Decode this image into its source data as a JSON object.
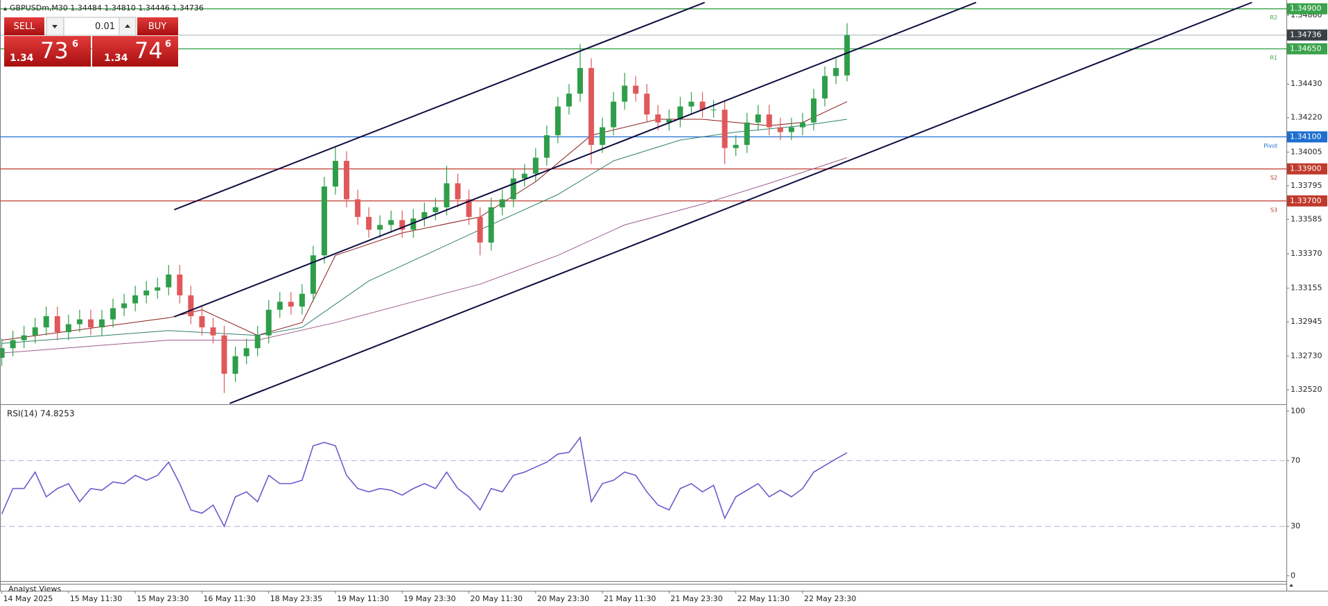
{
  "header": "GBPUSDm,M30  1.34484 1.34810 1.34446 1.34736",
  "trade_panel": {
    "sell": "SELL",
    "lot": "0.01",
    "buy": "BUY",
    "bid": {
      "big": "1.34",
      "main": "73",
      "small": "6"
    },
    "ask": {
      "big": "1.34",
      "main": "74",
      "small": "6"
    }
  },
  "analyst_views": "Analyst Views",
  "chart_data": {
    "type": "candlestick",
    "up_color": "#2f9e4a",
    "down_color": "#e0585a",
    "xlim": [
      -0.16,
      115.5
    ],
    "ylim": [
      1.3243,
      1.34955
    ],
    "xticks": [
      {
        "value": 0,
        "label": "14 May 2025"
      },
      {
        "value": 6,
        "label": "15 May 11:30"
      },
      {
        "value": 12,
        "label": "15 May 23:30"
      },
      {
        "value": 18,
        "label": "16 May 11:30"
      },
      {
        "value": 24,
        "label": "18 May 23:35"
      },
      {
        "value": 30,
        "label": "19 May 11:30"
      },
      {
        "value": 36,
        "label": "19 May 23:30"
      },
      {
        "value": 42,
        "label": "20 May 11:30"
      },
      {
        "value": 48,
        "label": "20 May 23:30"
      },
      {
        "value": 54,
        "label": "21 May 11:30"
      },
      {
        "value": 60,
        "label": "21 May 23:30"
      },
      {
        "value": 66,
        "label": "22 May 11:30"
      },
      {
        "value": 72,
        "label": "22 May 23:30"
      }
    ],
    "yticks": [
      {
        "value": 1.3486,
        "label": "1.34860"
      },
      {
        "value": 1.3443,
        "label": "1.34430"
      },
      {
        "value": 1.3422,
        "label": "1.34220"
      },
      1.34005,
      1.33795,
      1.33585,
      {
        "value": 1.3337,
        "label": "1.33370"
      },
      1.33155,
      1.32945,
      {
        "value": 1.3273,
        "label": "1.32730"
      },
      {
        "value": 1.3252,
        "label": "1.32520"
      }
    ],
    "open": [
      1.3272,
      1.3278,
      1.3283,
      1.3286,
      1.3291,
      1.3298,
      1.3288,
      1.3293,
      1.3296,
      1.3291,
      1.3296,
      1.3303,
      1.3306,
      1.3311,
      1.3314,
      1.3316,
      1.3324,
      1.3311,
      1.3298,
      1.3291,
      1.3286,
      1.3262,
      1.3273,
      1.3278,
      1.3286,
      1.3302,
      1.3307,
      1.3304,
      1.3312,
      1.3336,
      1.3379,
      1.3395,
      1.3371,
      1.336,
      1.3352,
      1.3355,
      1.3358,
      1.3352,
      1.3359,
      1.3363,
      1.3366,
      1.3381,
      1.3371,
      1.336,
      1.3344,
      1.3366,
      1.3371,
      1.3384,
      1.3387,
      1.3397,
      1.3411,
      1.3429,
      1.3437,
      1.3453,
      1.3405,
      1.3416,
      1.3432,
      1.3442,
      1.3437,
      1.3424,
      1.3419,
      1.3421,
      1.3429,
      1.3432,
      1.3427,
      1.3427,
      1.3403,
      1.3405,
      1.3419,
      1.3424,
      1.3416,
      1.3413,
      1.3416,
      1.3419,
      1.3434,
      1.3448,
      1.34484
    ],
    "high": [
      1.3284,
      1.3289,
      1.3292,
      1.3297,
      1.3304,
      1.3304,
      1.3299,
      1.3302,
      1.3302,
      1.3302,
      1.3309,
      1.3312,
      1.3317,
      1.332,
      1.3322,
      1.333,
      1.333,
      1.3317,
      1.3304,
      1.3297,
      1.3292,
      1.3279,
      1.3284,
      1.3292,
      1.3308,
      1.3313,
      1.3313,
      1.3318,
      1.3342,
      1.3385,
      1.3404,
      1.3401,
      1.3377,
      1.3366,
      1.3361,
      1.3364,
      1.3364,
      1.3365,
      1.3369,
      1.3372,
      1.3392,
      1.3387,
      1.3377,
      1.3366,
      1.3372,
      1.3377,
      1.339,
      1.3393,
      1.3403,
      1.3417,
      1.3435,
      1.3443,
      1.3468,
      1.3459,
      1.3422,
      1.3438,
      1.345,
      1.3448,
      1.3443,
      1.343,
      1.3427,
      1.3435,
      1.3438,
      1.3438,
      1.3433,
      1.3433,
      1.3411,
      1.3425,
      1.343,
      1.343,
      1.3422,
      1.3422,
      1.3425,
      1.344,
      1.3454,
      1.3459,
      1.3481
    ],
    "low": [
      1.3267,
      1.3273,
      1.3278,
      1.3281,
      1.3286,
      1.3283,
      1.3283,
      1.3288,
      1.3286,
      1.3286,
      1.3291,
      1.3298,
      1.3301,
      1.3306,
      1.3309,
      1.3311,
      1.3306,
      1.3293,
      1.3286,
      1.3281,
      1.325,
      1.3257,
      1.3268,
      1.3273,
      1.3281,
      1.3297,
      1.3299,
      1.3299,
      1.3307,
      1.3331,
      1.3374,
      1.3366,
      1.3355,
      1.3347,
      1.3347,
      1.335,
      1.3347,
      1.3347,
      1.3354,
      1.3358,
      1.3361,
      1.3366,
      1.3355,
      1.3336,
      1.3339,
      1.3361,
      1.3366,
      1.3379,
      1.3382,
      1.3392,
      1.3406,
      1.3424,
      1.3432,
      1.3393,
      1.34,
      1.3411,
      1.3427,
      1.3432,
      1.3419,
      1.3414,
      1.3414,
      1.3416,
      1.3424,
      1.3422,
      1.3422,
      1.3393,
      1.3398,
      1.34,
      1.3414,
      1.3411,
      1.3408,
      1.3408,
      1.3411,
      1.3414,
      1.3429,
      1.3443,
      1.34446
    ],
    "close": [
      1.3278,
      1.3283,
      1.3286,
      1.3291,
      1.3298,
      1.3288,
      1.3293,
      1.3296,
      1.3291,
      1.3296,
      1.3303,
      1.3306,
      1.3311,
      1.3314,
      1.3316,
      1.3324,
      1.3311,
      1.3298,
      1.3291,
      1.3286,
      1.3262,
      1.3273,
      1.3278,
      1.3286,
      1.3302,
      1.3307,
      1.3304,
      1.3312,
      1.3336,
      1.3379,
      1.3395,
      1.3371,
      1.336,
      1.3352,
      1.3355,
      1.3358,
      1.3352,
      1.3359,
      1.3363,
      1.3366,
      1.3381,
      1.3371,
      1.336,
      1.3344,
      1.3366,
      1.3371,
      1.3384,
      1.3387,
      1.3397,
      1.3411,
      1.3429,
      1.3437,
      1.3453,
      1.3405,
      1.3416,
      1.3432,
      1.3442,
      1.3437,
      1.3424,
      1.3419,
      1.3421,
      1.3429,
      1.3432,
      1.3427,
      1.3427,
      1.3403,
      1.3405,
      1.3419,
      1.3424,
      1.3416,
      1.3413,
      1.3416,
      1.3419,
      1.3434,
      1.3448,
      1.3453,
      1.34736
    ],
    "moving_averages": [
      {
        "color": "#8b1a1a",
        "x": [
          0,
          15,
          18,
          23,
          27,
          30,
          36,
          43,
          48,
          53,
          59,
          63,
          69,
          72,
          76
        ],
        "values": [
          1.3283,
          1.3297,
          1.3302,
          1.3286,
          1.3294,
          1.3336,
          1.335,
          1.336,
          1.3382,
          1.3411,
          1.3421,
          1.3421,
          1.3417,
          1.3419,
          1.3432
        ]
      },
      {
        "color": "#2f7f6f",
        "x": [
          0,
          15,
          23,
          27,
          33,
          38,
          43,
          50,
          55,
          61,
          66,
          72,
          76
        ],
        "values": [
          1.3281,
          1.3289,
          1.3286,
          1.3291,
          1.332,
          1.3336,
          1.3352,
          1.3374,
          1.3395,
          1.3408,
          1.3413,
          1.3417,
          1.3421
        ]
      },
      {
        "color": "#9c5b8e",
        "x": [
          0,
          15,
          23,
          30,
          37,
          43,
          50,
          56,
          63,
          69,
          76
        ],
        "values": [
          1.3275,
          1.3283,
          1.3283,
          1.3294,
          1.3307,
          1.3318,
          1.3336,
          1.3355,
          1.3368,
          1.3381,
          1.3397
        ]
      }
    ],
    "trendline_color": "#0c0c40",
    "trendlines": [
      {
        "x": [
          15.5,
          63.2
        ],
        "y": [
          1.33645,
          1.3494
        ]
      },
      {
        "x": [
          15.5,
          87.6
        ],
        "y": [
          1.32976,
          1.3494
        ]
      },
      {
        "x": [
          20.5,
          112.4
        ],
        "y": [
          1.32435,
          1.3494
        ]
      }
    ],
    "levels": [
      {
        "name": "R2",
        "value": 1.349,
        "label": "1.34900",
        "color": "#3aa24a"
      },
      {
        "name": "R1",
        "value": 1.3465,
        "label": "1.34650",
        "color": "#3aa24a"
      },
      {
        "name": "Pivot",
        "value": 1.341,
        "label": "1.34100",
        "color": "#1e6fd0"
      },
      {
        "name": "S2",
        "value": 1.339,
        "label": "1.33900",
        "color": "#c0392b"
      },
      {
        "name": "S3",
        "value": 1.337,
        "label": "1.33700",
        "color": "#c0392b"
      }
    ],
    "current_price": 1.34736,
    "current_price_color": "#3a3f44",
    "rsi": {
      "label": "RSI(14) 74.8253",
      "color": "#6a5acd",
      "level_color": "#b9a9dc",
      "ylim": [
        -3.6,
        103.8
      ],
      "yticks": [
        100,
        70,
        30,
        0
      ],
      "levels": [
        70,
        30
      ],
      "values": [
        37.6,
        53,
        53,
        63,
        48,
        53,
        56,
        45,
        53,
        52,
        57,
        56,
        61,
        58,
        61,
        69,
        56,
        40,
        38,
        43,
        30,
        48,
        51,
        45,
        61,
        56,
        56,
        58,
        79,
        81,
        79,
        61,
        53,
        51,
        53,
        52,
        49,
        53,
        56,
        53,
        63,
        53,
        48,
        40,
        53,
        51,
        61,
        63,
        66,
        69,
        74,
        75,
        84,
        45,
        56,
        58,
        63,
        61,
        51,
        43,
        40,
        53,
        56,
        51,
        55,
        35,
        48,
        52,
        56,
        48,
        52,
        48,
        53,
        63,
        67,
        71,
        74.8
      ]
    }
  }
}
